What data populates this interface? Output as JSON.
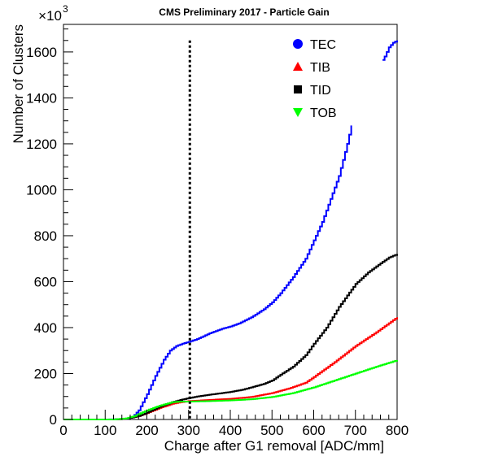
{
  "chart_data": {
    "type": "line",
    "title": "CMS Preliminary 2017  -  Particle Gain",
    "xlabel": "Charge after G1 removal [ADC/mm]",
    "ylabel": "Number of Clusters",
    "y_multiplier_label": "×10",
    "y_multiplier_exponent": "3",
    "xlim": [
      0,
      800
    ],
    "ylim": [
      0,
      1720
    ],
    "x_ticks": [
      0,
      100,
      200,
      300,
      400,
      500,
      600,
      700,
      800
    ],
    "y_ticks": [
      0,
      200,
      400,
      600,
      800,
      1000,
      1200,
      1400,
      1600
    ],
    "vertical_line_x": 303,
    "legend_position": "top-right",
    "series": [
      {
        "name": "TEC",
        "color": "#0000ff",
        "marker": "circle",
        "segments": [
          [
            [
              0,
              0
            ],
            [
              100,
              0
            ],
            [
              150,
              2
            ],
            [
              165,
              10
            ],
            [
              180,
              40
            ],
            [
              200,
              110
            ],
            [
              220,
              190
            ],
            [
              240,
              260
            ],
            [
              255,
              300
            ],
            [
              270,
              320
            ],
            [
              285,
              330
            ],
            [
              300,
              338
            ],
            [
              320,
              350
            ],
            [
              350,
              375
            ],
            [
              380,
              395
            ],
            [
              400,
              405
            ],
            [
              420,
              418
            ],
            [
              450,
              445
            ],
            [
              480,
              480
            ],
            [
              500,
              510
            ],
            [
              520,
              550
            ],
            [
              550,
              620
            ],
            [
              580,
              700
            ],
            [
              600,
              780
            ],
            [
              620,
              860
            ],
            [
              640,
              960
            ],
            [
              660,
              1060
            ],
            [
              680,
              1200
            ],
            [
              690,
              1280
            ]
          ],
          [
            [
              765,
              1565
            ],
            [
              770,
              1580
            ],
            [
              775,
              1600
            ],
            [
              780,
              1620
            ],
            [
              785,
              1630
            ],
            [
              790,
              1640
            ],
            [
              800,
              1650
            ]
          ]
        ]
      },
      {
        "name": "TIB",
        "color": "#ff0000",
        "marker": "triangle-up",
        "segments": [
          [
            [
              0,
              0
            ],
            [
              120,
              0
            ],
            [
              150,
              3
            ],
            [
              180,
              15
            ],
            [
              200,
              28
            ],
            [
              230,
              50
            ],
            [
              260,
              68
            ],
            [
              280,
              75
            ],
            [
              300,
              80
            ],
            [
              350,
              85
            ],
            [
              400,
              90
            ],
            [
              450,
              98
            ],
            [
              500,
              115
            ],
            [
              540,
              135
            ],
            [
              580,
              160
            ],
            [
              600,
              185
            ],
            [
              650,
              250
            ],
            [
              700,
              320
            ],
            [
              750,
              380
            ],
            [
              800,
              445
            ]
          ]
        ]
      },
      {
        "name": "TID",
        "color": "#000000",
        "marker": "square",
        "segments": [
          [
            [
              0,
              0
            ],
            [
              120,
              0
            ],
            [
              150,
              3
            ],
            [
              180,
              15
            ],
            [
              200,
              30
            ],
            [
              230,
              55
            ],
            [
              260,
              75
            ],
            [
              280,
              85
            ],
            [
              300,
              93
            ],
            [
              320,
              100
            ],
            [
              350,
              108
            ],
            [
              380,
              115
            ],
            [
              400,
              120
            ],
            [
              430,
              130
            ],
            [
              450,
              140
            ],
            [
              480,
              155
            ],
            [
              500,
              170
            ],
            [
              520,
              195
            ],
            [
              550,
              230
            ],
            [
              580,
              280
            ],
            [
              600,
              330
            ],
            [
              630,
              400
            ],
            [
              660,
              490
            ],
            [
              700,
              590
            ],
            [
              730,
              640
            ],
            [
              760,
              680
            ],
            [
              780,
              705
            ],
            [
              800,
              720
            ]
          ]
        ]
      },
      {
        "name": "TOB",
        "color": "#00ff00",
        "marker": "triangle-down",
        "segments": [
          [
            [
              0,
              0
            ],
            [
              120,
              0
            ],
            [
              150,
              5
            ],
            [
              170,
              15
            ],
            [
              200,
              40
            ],
            [
              230,
              60
            ],
            [
              260,
              75
            ],
            [
              280,
              78
            ],
            [
              300,
              78
            ],
            [
              350,
              80
            ],
            [
              400,
              83
            ],
            [
              450,
              88
            ],
            [
              500,
              98
            ],
            [
              550,
              115
            ],
            [
              600,
              140
            ],
            [
              650,
              170
            ],
            [
              700,
              200
            ],
            [
              750,
              230
            ],
            [
              800,
              258
            ]
          ]
        ]
      }
    ]
  }
}
